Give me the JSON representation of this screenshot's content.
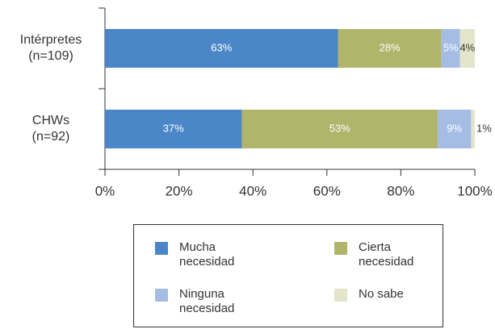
{
  "chart_data": {
    "type": "stacked_barh",
    "categories": [
      "Intérpretes (n=109)",
      "CHWs (n=92)"
    ],
    "series": [
      {
        "name": "Mucha necesidad",
        "color": "#4a86c8",
        "values": [
          63,
          37
        ],
        "value_labels": [
          "63%",
          "37%"
        ]
      },
      {
        "name": "Cierta necesidad",
        "color": "#b1b46b",
        "values": [
          28,
          53
        ],
        "value_labels": [
          "28%",
          "53%"
        ]
      },
      {
        "name": "Ninguna necesidad",
        "color": "#a5bde5",
        "values": [
          5,
          9
        ],
        "value_labels": [
          "5%",
          "9%"
        ]
      },
      {
        "name": "No sabe",
        "color": "#e3e5cb",
        "values": [
          4,
          1
        ],
        "value_labels": [
          "4%",
          "1%"
        ]
      }
    ],
    "xlim": [
      0,
      100
    ],
    "xticks": [
      {
        "value": 0,
        "label": "0%"
      },
      {
        "value": 20,
        "label": "20%"
      },
      {
        "value": 40,
        "label": "40%"
      },
      {
        "value": 60,
        "label": "60%"
      },
      {
        "value": 80,
        "label": "80%"
      },
      {
        "value": 100,
        "label": "100%"
      }
    ],
    "legend": "bottom"
  }
}
